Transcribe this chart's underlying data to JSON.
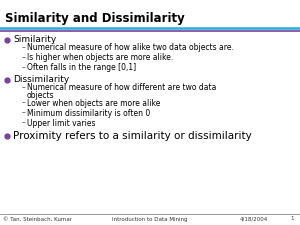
{
  "title": "Similarity and Dissimilarity",
  "bg_color": "#ffffff",
  "title_line1_color": "#29abe2",
  "title_line2_color": "#7b3f9e",
  "bullet_color": "#7b3f9e",
  "bullet1_label": "Similarity",
  "bullet1_items": [
    "Numerical measure of how alike two data objects are.",
    "Is higher when objects are more alike.",
    "Often falls in the range [0,1]"
  ],
  "bullet2_label": "Dissimilarity",
  "bullet2_items": [
    "Numerical measure of how different are two data\nobjects",
    "Lower when objects are more alike",
    "Minimum dissimilarity is often 0",
    "Upper limit varies"
  ],
  "bullet3_label": "Proximity refers to a similarity or dissimilarity",
  "footer_left": "© Tan, Steinbach, Kumar",
  "footer_center": "Introduction to Data Mining",
  "footer_right": "4/18/2004",
  "footer_page": "1",
  "title_fontsize": 8.5,
  "main_bullet_fontsize": 6.5,
  "sub_bullet_fontsize": 5.5,
  "proximity_fontsize": 7.5,
  "footer_fontsize": 4.0
}
